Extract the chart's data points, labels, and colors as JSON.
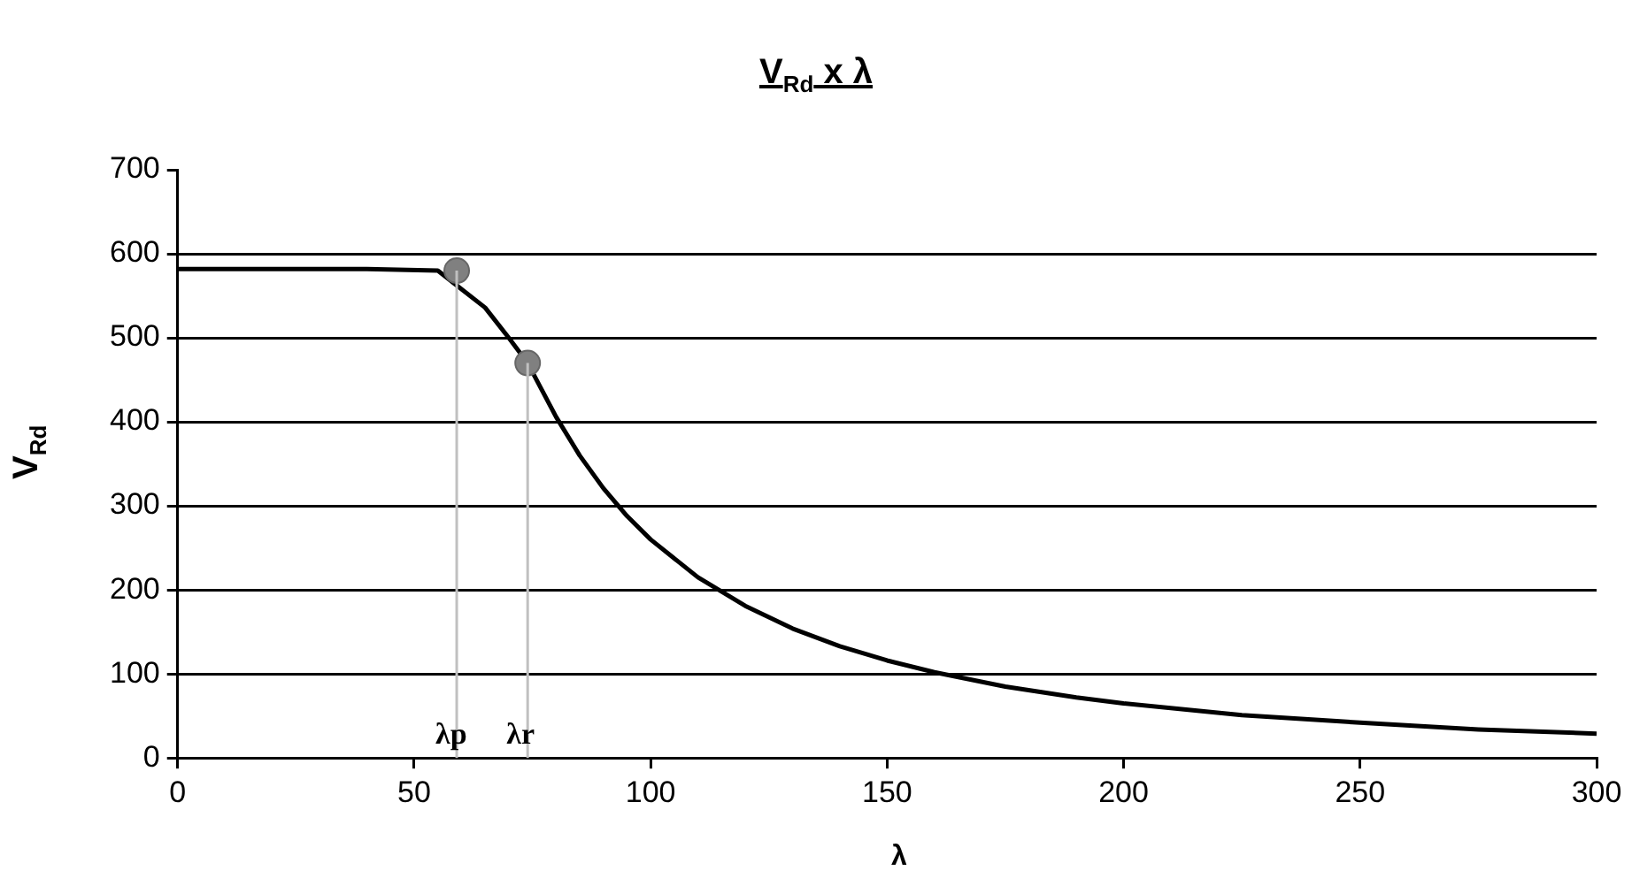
{
  "chart_data": {
    "type": "line",
    "title": "V$_{Rd}$ x λ",
    "xlabel": "λ",
    "ylabel": "V$_{Rd}$",
    "xlim": [
      0,
      300
    ],
    "xticks": [
      0,
      50,
      100,
      150,
      200,
      250,
      300
    ],
    "ylim": [
      0,
      700
    ],
    "yticks": [
      0,
      100,
      200,
      300,
      400,
      500,
      600,
      700
    ],
    "grid": "y",
    "legend": false,
    "series": [
      {
        "type": "line",
        "color": "#000000",
        "marker": "none",
        "x": [
          0,
          20,
          40,
          55,
          65,
          70,
          74,
          80,
          85,
          90,
          95,
          100,
          110,
          120,
          130,
          140,
          150,
          160,
          175,
          190,
          200,
          225,
          250,
          275,
          300
        ],
        "values": [
          582,
          582,
          582,
          580,
          536,
          500,
          470,
          406,
          360,
          321,
          288,
          260,
          215,
          181,
          154,
          133,
          116,
          102,
          85,
          72,
          65,
          51,
          42,
          34,
          29
        ]
      },
      {
        "type": "scatter",
        "color": "#808080",
        "marker": "circle",
        "x": [
          59,
          74
        ],
        "values": [
          580,
          470
        ]
      }
    ],
    "ref_lines": [
      {
        "axis": "x",
        "value": 59,
        "label": "λp",
        "color": "#c0c0c0"
      },
      {
        "axis": "x",
        "value": 74,
        "label": "λr",
        "color": "#c0c0c0"
      }
    ]
  }
}
